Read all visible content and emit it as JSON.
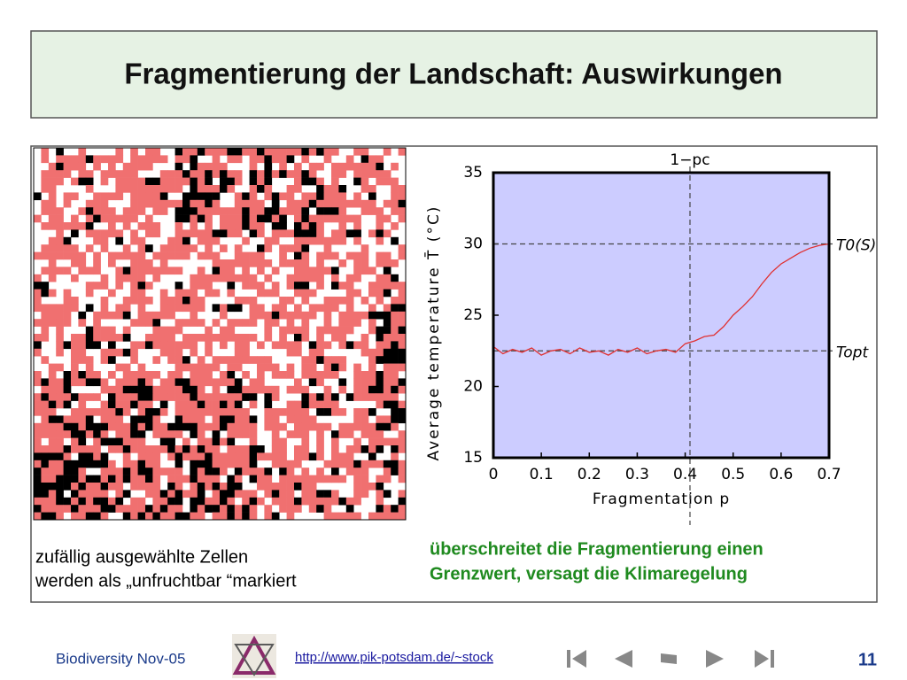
{
  "title": "Fragmentierung der Landschaft: Auswirkungen",
  "caption_left": [
    "zufällig ausgewählte Zellen",
    "werden als „unfruchtbar “markiert"
  ],
  "caption_right": [
    "überschreitet die Fragmentierung einen",
    "Grenzwert, versagt die Klimaregelung"
  ],
  "footer": {
    "left": "Biodiversity Nov-05",
    "link": "http://www.pik-potsdam.de/~stock",
    "page": "11"
  },
  "chart_data": {
    "type": "line",
    "xlabel": "Fragmentation p",
    "ylabel": "Average temperature T̄ (°C)",
    "xlim": [
      0,
      0.7
    ],
    "ylim": [
      15,
      35
    ],
    "xticks": [
      0,
      0.1,
      0.2,
      0.3,
      0.4,
      0.5,
      0.6,
      0.7
    ],
    "yticks": [
      15,
      20,
      25,
      30,
      35
    ],
    "series": [
      {
        "color": "#e03030",
        "x": [
          0,
          0.02,
          0.04,
          0.06,
          0.08,
          0.1,
          0.12,
          0.14,
          0.16,
          0.18,
          0.2,
          0.22,
          0.24,
          0.26,
          0.28,
          0.3,
          0.32,
          0.34,
          0.36,
          0.38,
          0.4,
          0.42,
          0.44,
          0.46,
          0.48,
          0.5,
          0.52,
          0.54,
          0.56,
          0.58,
          0.6,
          0.62,
          0.64,
          0.66,
          0.68,
          0.7
        ],
        "values": [
          22.8,
          22.3,
          22.6,
          22.4,
          22.7,
          22.2,
          22.5,
          22.6,
          22.3,
          22.7,
          22.4,
          22.5,
          22.2,
          22.6,
          22.4,
          22.7,
          22.3,
          22.5,
          22.6,
          22.4,
          23.0,
          23.2,
          23.5,
          23.6,
          24.2,
          25.0,
          25.6,
          26.3,
          27.2,
          28.0,
          28.6,
          29.0,
          29.4,
          29.7,
          29.9,
          30.0
        ]
      }
    ],
    "vlines": [
      {
        "x": 0.41,
        "label": "1−pc"
      }
    ],
    "hlines": [
      {
        "y": 30,
        "label": "T0(S)"
      },
      {
        "y": 22.5,
        "label": "Topt"
      }
    ]
  }
}
